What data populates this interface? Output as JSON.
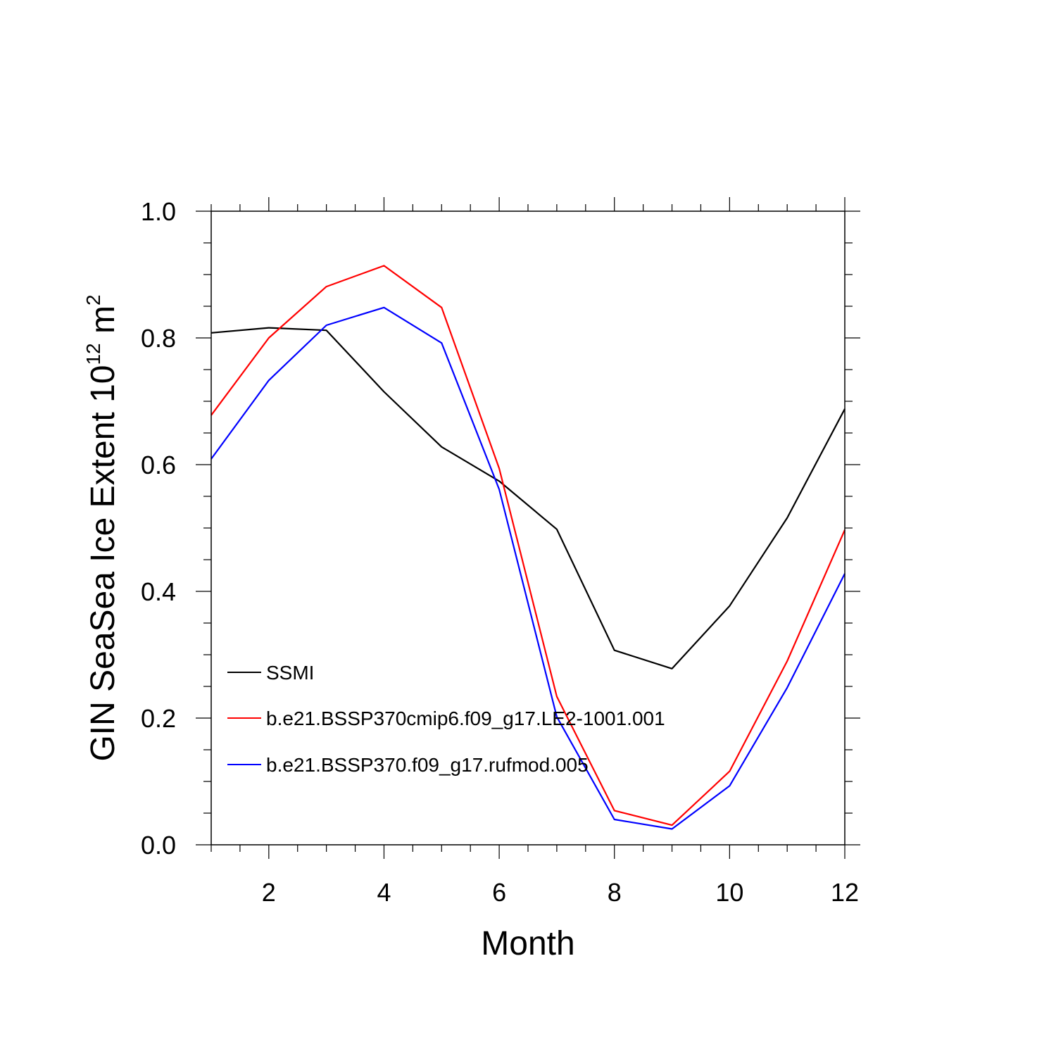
{
  "chart_data": {
    "type": "line",
    "x": [
      1,
      2,
      3,
      4,
      5,
      6,
      7,
      8,
      9,
      10,
      11,
      12
    ],
    "series": [
      {
        "name": "SSMI",
        "color": "#000000",
        "values": [
          0.808,
          0.816,
          0.812,
          0.715,
          0.628,
          0.574,
          0.498,
          0.307,
          0.278,
          0.377,
          0.516,
          0.688
        ]
      },
      {
        "name": "b.e21.BSSP370cmip6.f09_g17.LE2-1001.001",
        "color": "#ff0000",
        "values": [
          0.678,
          0.8,
          0.881,
          0.914,
          0.848,
          0.594,
          0.234,
          0.054,
          0.031,
          0.116,
          0.29,
          0.497
        ]
      },
      {
        "name": "b.e21.BSSP370.f09_g17.rufmod.005",
        "color": "#0000ff",
        "values": [
          0.609,
          0.733,
          0.82,
          0.848,
          0.792,
          0.561,
          0.202,
          0.04,
          0.025,
          0.093,
          0.248,
          0.428
        ]
      }
    ],
    "xlabel": "Month",
    "ylabel": {
      "main": "GIN SeaSea Ice Extent 10",
      "sup1": "12",
      "unit": " m",
      "sup2": "2"
    },
    "xlim": [
      1,
      12
    ],
    "ylim": [
      0,
      1
    ],
    "xticks": [
      2,
      4,
      6,
      8,
      10,
      12
    ],
    "xtick_labels": [
      "2",
      "4",
      "6",
      "8",
      "10",
      "12"
    ],
    "yticks": [
      0,
      0.2,
      0.4,
      0.6,
      0.8,
      1.0
    ],
    "ytick_labels": [
      "0.0",
      "0.2",
      "0.4",
      "0.6",
      "0.8",
      "1.0"
    ],
    "grid": false,
    "legend_position": "lower-left"
  }
}
